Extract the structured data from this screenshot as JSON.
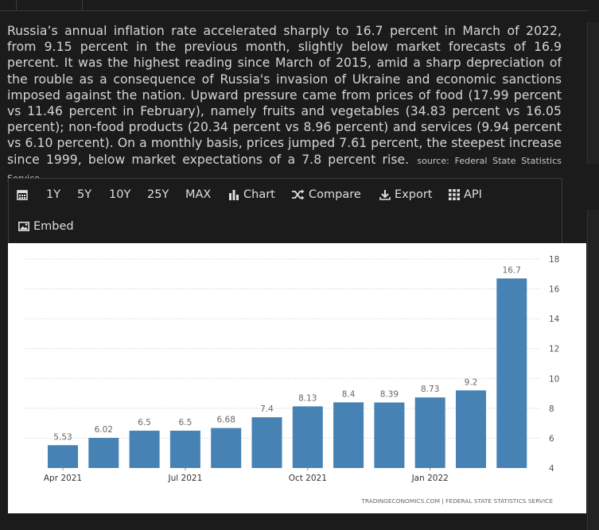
{
  "description": {
    "text": "Russia’s annual inflation rate accelerated sharply to 16.7 percent in March of 2022, from 9.15 percent in the previous month, slightly below market forecasts of 16.9 percent. It was the highest reading since March of 2015, amid a sharp depreciation of the rouble as a consequence of Russia's invasion of Ukraine and economic sanctions imposed against the nation. Upward pressure came from prices of food (17.99 percent vs 11.46 percent in February), namely fruits and vegetables (34.83 percent vs 16.05 percent); non-food products (20.34 percent vs 8.96 percent) and services (9.94 percent vs 6.10 percent). On a monthly basis, prices jumped 7.61 percent, the steepest increase since 1999, below market expectations of a 7.8 percent rise.",
    "source": "source: Federal State Statistics Service"
  },
  "toolbar": {
    "calendar_icon": "calendar-icon",
    "range_1y": "1Y",
    "range_5y": "5Y",
    "range_10y": "10Y",
    "range_25y": "25Y",
    "range_max": "MAX",
    "chart_label": "Chart",
    "compare_label": "Compare",
    "export_label": "Export",
    "api_label": "API",
    "embed_label": "Embed"
  },
  "colors": {
    "bar": "#4682b4",
    "background": "#1b1b1b",
    "chart_bg": "#ffffff"
  },
  "chart_data": {
    "type": "bar",
    "categories": [
      "Apr 2021",
      "May 2021",
      "Jun 2021",
      "Jul 2021",
      "Aug 2021",
      "Sep 2021",
      "Oct 2021",
      "Nov 2021",
      "Dec 2021",
      "Jan 2022",
      "Feb 2022",
      "Mar 2022"
    ],
    "values": [
      5.53,
      6.02,
      6.5,
      6.5,
      6.68,
      7.4,
      8.13,
      8.4,
      8.39,
      8.73,
      9.2,
      16.7
    ],
    "data_labels": [
      "5.53",
      "6.02",
      "6.5",
      "6.5",
      "6.68",
      "7.4",
      "8.13",
      "8.4",
      "8.39",
      "8.73",
      "9.2",
      "16.7"
    ],
    "x_tick_labels": [
      "Apr 2021",
      "Jul 2021",
      "Oct 2021",
      "Jan 2022"
    ],
    "y_ticks": [
      4,
      6,
      8,
      10,
      12,
      14,
      16,
      18
    ],
    "ylim": [
      4,
      18
    ],
    "y_axis_side": "right",
    "grid": "horizontal dotted",
    "title": "",
    "xlabel": "",
    "ylabel": "",
    "watermark": "TRADINGECONOMICS.COM  |  FEDERAL STATE STATISTICS SERVICE"
  }
}
